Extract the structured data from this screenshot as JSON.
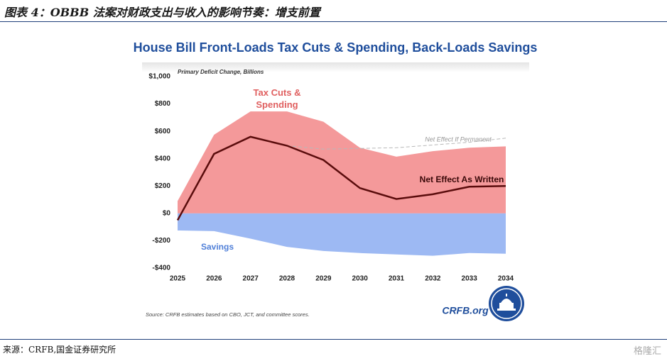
{
  "header": {
    "title": "图表 4：OBBB 法案对财政支出与收入的影响节奏：增支前置"
  },
  "chart_data": {
    "type": "area",
    "title": "House Bill Front-Loads Tax Cuts & Spending, Back-Loads Savings",
    "subtitle": "Primary Deficit Change, Billions",
    "categories": [
      "2025",
      "2026",
      "2027",
      "2028",
      "2029",
      "2030",
      "2031",
      "2032",
      "2033",
      "2034"
    ],
    "series": [
      {
        "name": "Tax Cuts & Spending",
        "color": "#f4999a",
        "style": "area",
        "values": [
          90,
          575,
          745,
          745,
          670,
          480,
          415,
          455,
          480,
          490
        ]
      },
      {
        "name": "Savings",
        "color": "#9db9f3",
        "style": "area",
        "values": [
          -125,
          -130,
          -185,
          -245,
          -275,
          -290,
          -300,
          -310,
          -290,
          -295
        ]
      },
      {
        "name": "Net Effect If Permanent",
        "color": "#b8b8b8",
        "style": "dashed",
        "values": [
          null,
          null,
          null,
          495,
          470,
          475,
          480,
          500,
          520,
          550
        ]
      },
      {
        "name": "Net Effect As Written",
        "color": "#5a0c0c",
        "style": "line",
        "values": [
          -50,
          435,
          560,
          495,
          390,
          185,
          105,
          140,
          195,
          200
        ]
      }
    ],
    "ylim": [
      -400,
      1000
    ],
    "yticks": [
      {
        "value": -400,
        "label": "-$400"
      },
      {
        "value": -200,
        "label": "-$200"
      },
      {
        "value": 0,
        "label": "$0"
      },
      {
        "value": 200,
        "label": "$200"
      },
      {
        "value": 400,
        "label": "$400"
      },
      {
        "value": 600,
        "label": "$600"
      },
      {
        "value": 800,
        "label": "$800"
      },
      {
        "value": 1000,
        "label": "$1,000"
      }
    ],
    "source": "Source: CRFB estimates based on CBO, JCT, and committee scores.",
    "brand": "CRFB.org"
  },
  "footer": {
    "source": "来源：CRFB,国金证券研究所",
    "watermark": "格隆汇"
  }
}
